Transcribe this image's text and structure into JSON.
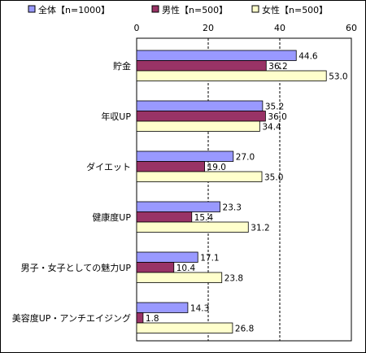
{
  "chart_data": {
    "type": "bar",
    "orientation": "horizontal",
    "categories": [
      "貯金",
      "年収UP",
      "ダイエット",
      "健康度UP",
      "男子・女子としての魅力UP",
      "美容度UP・アンチエイジング"
    ],
    "series": [
      {
        "name": "全体【n=1000】",
        "color": "#9999ff",
        "values": [
          44.6,
          35.2,
          27.0,
          23.3,
          17.1,
          14.3
        ]
      },
      {
        "name": "男性【n=500】",
        "color": "#993366",
        "values": [
          36.2,
          36.0,
          19.0,
          15.4,
          10.4,
          1.8
        ]
      },
      {
        "name": "女性【n=500】",
        "color": "#ffffcc",
        "values": [
          53.0,
          34.4,
          35.0,
          31.2,
          23.8,
          26.8
        ]
      }
    ],
    "value_labels": [
      [
        "44.6",
        "35.2",
        "27.0",
        "23.3",
        "17.1",
        "14.3"
      ],
      [
        "36.2",
        "36.0",
        "19.0",
        "15.4",
        "10.4",
        "1.8"
      ],
      [
        "53.0",
        "34.4",
        "35.0",
        "31.2",
        "23.8",
        "26.8"
      ]
    ],
    "xlim": [
      0,
      60
    ],
    "xticks": [
      "0",
      "20",
      "40",
      "60"
    ],
    "grid": "dashed vertical",
    "legend_position": "top"
  }
}
